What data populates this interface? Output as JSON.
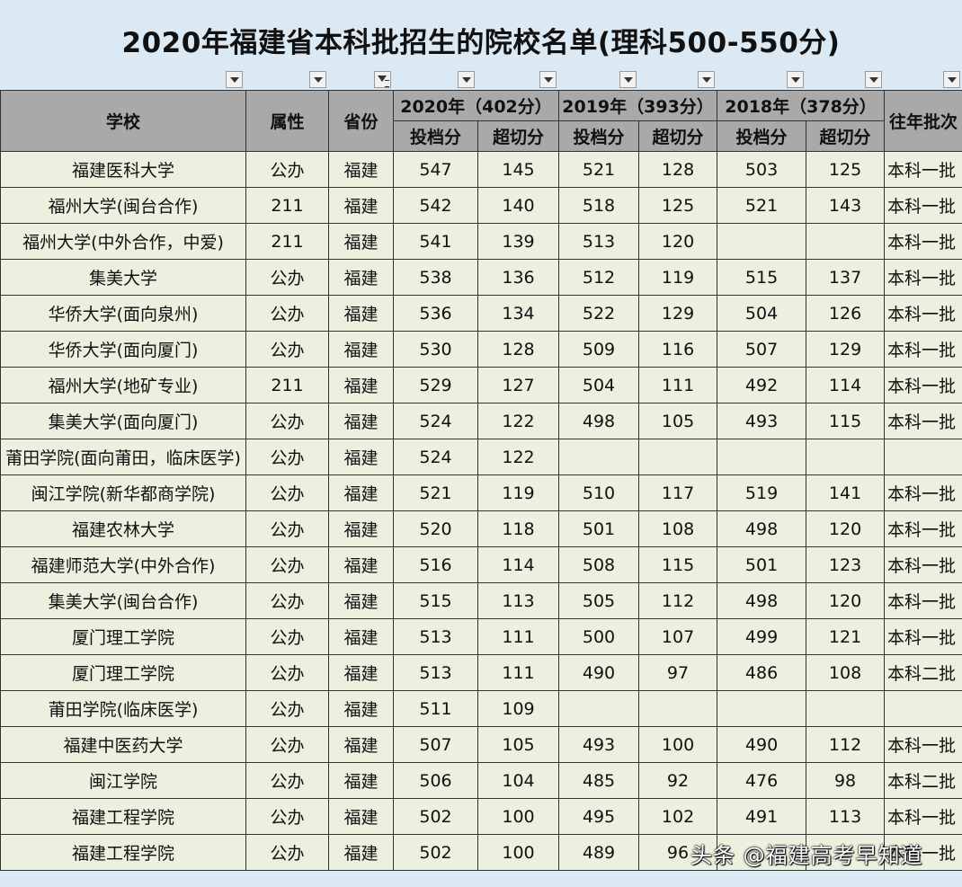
{
  "title": "2020年福建省本科批招生的院校名单(理科500-550分)",
  "headers": {
    "school": "学校",
    "attr": "属性",
    "province": "省份",
    "y2020": "2020年（402分）",
    "y2019": "2019年（393分）",
    "y2018": "2018年（378分）",
    "batch": "往年批次",
    "score": "投档分",
    "over": "超切分"
  },
  "rows": [
    [
      "福建医科大学",
      "公办",
      "福建",
      "547",
      "145",
      "521",
      "128",
      "503",
      "125",
      "本科一批"
    ],
    [
      "福州大学(闽台合作)",
      "211",
      "福建",
      "542",
      "140",
      "518",
      "125",
      "521",
      "143",
      "本科一批"
    ],
    [
      "福州大学(中外合作，中爱)",
      "211",
      "福建",
      "541",
      "139",
      "513",
      "120",
      "",
      "",
      "本科一批"
    ],
    [
      "集美大学",
      "公办",
      "福建",
      "538",
      "136",
      "512",
      "119",
      "515",
      "137",
      "本科一批"
    ],
    [
      "华侨大学(面向泉州)",
      "公办",
      "福建",
      "536",
      "134",
      "522",
      "129",
      "504",
      "126",
      "本科一批"
    ],
    [
      "华侨大学(面向厦门)",
      "公办",
      "福建",
      "530",
      "128",
      "509",
      "116",
      "507",
      "129",
      "本科一批"
    ],
    [
      "福州大学(地矿专业)",
      "211",
      "福建",
      "529",
      "127",
      "504",
      "111",
      "492",
      "114",
      "本科一批"
    ],
    [
      "集美大学(面向厦门)",
      "公办",
      "福建",
      "524",
      "122",
      "498",
      "105",
      "493",
      "115",
      "本科一批"
    ],
    [
      "莆田学院(面向莆田，临床医学)",
      "公办",
      "福建",
      "524",
      "122",
      "",
      "",
      "",
      "",
      ""
    ],
    [
      "闽江学院(新华都商学院)",
      "公办",
      "福建",
      "521",
      "119",
      "510",
      "117",
      "519",
      "141",
      "本科一批"
    ],
    [
      "福建农林大学",
      "公办",
      "福建",
      "520",
      "118",
      "501",
      "108",
      "498",
      "120",
      "本科一批"
    ],
    [
      "福建师范大学(中外合作)",
      "公办",
      "福建",
      "516",
      "114",
      "508",
      "115",
      "501",
      "123",
      "本科一批"
    ],
    [
      "集美大学(闽台合作)",
      "公办",
      "福建",
      "515",
      "113",
      "505",
      "112",
      "498",
      "120",
      "本科一批"
    ],
    [
      "厦门理工学院",
      "公办",
      "福建",
      "513",
      "111",
      "500",
      "107",
      "499",
      "121",
      "本科一批"
    ],
    [
      "厦门理工学院",
      "公办",
      "福建",
      "513",
      "111",
      "490",
      "97",
      "486",
      "108",
      "本科二批"
    ],
    [
      "莆田学院(临床医学)",
      "公办",
      "福建",
      "511",
      "109",
      "",
      "",
      "",
      "",
      ""
    ],
    [
      "福建中医药大学",
      "公办",
      "福建",
      "507",
      "105",
      "493",
      "100",
      "490",
      "112",
      "本科一批"
    ],
    [
      "闽江学院",
      "公办",
      "福建",
      "506",
      "104",
      "485",
      "92",
      "476",
      "98",
      "本科二批"
    ],
    [
      "福建工程学院",
      "公办",
      "福建",
      "502",
      "100",
      "495",
      "102",
      "491",
      "113",
      "本科一批"
    ],
    [
      "福建工程学院",
      "公办",
      "福建",
      "502",
      "100",
      "489",
      "96",
      "",
      "",
      "本科一批"
    ]
  ],
  "watermark": "头条 @福建高考早知道"
}
